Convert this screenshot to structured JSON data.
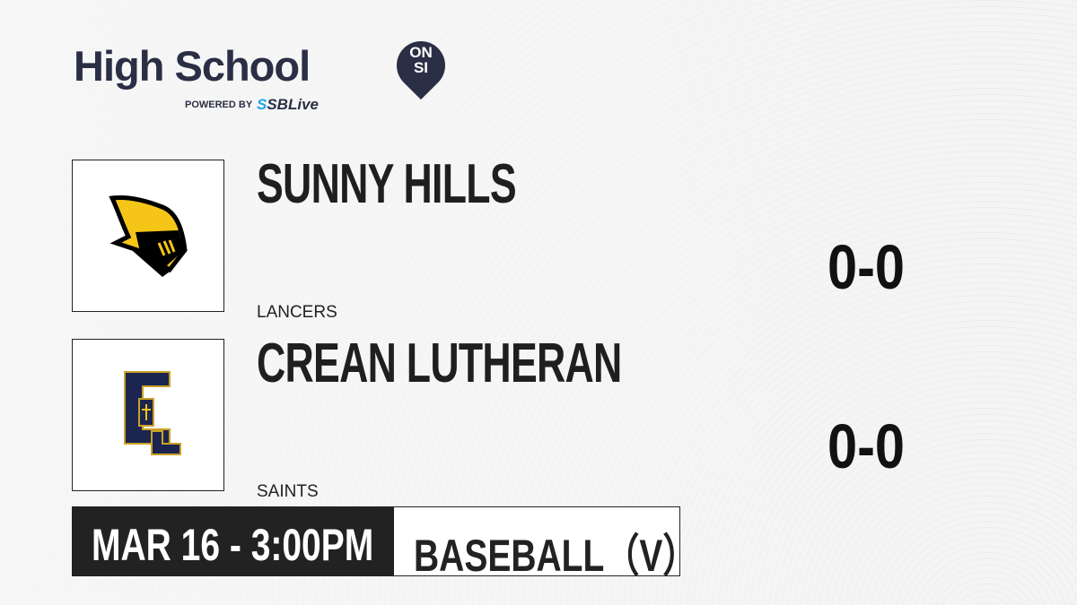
{
  "brand": {
    "title": "High School",
    "badge_top": "ON",
    "badge_bottom": "SI",
    "powered_by": "POWERED BY",
    "partner_prefix": "S",
    "partner": "SBLive"
  },
  "teams": [
    {
      "name": "SUNNY HILLS",
      "mascot": "LANCERS",
      "record": "0-0",
      "logo": "knight-helmet-logo",
      "colors": [
        "#f5c518",
        "#000000"
      ]
    },
    {
      "name": "CREAN LUTHERAN",
      "mascot": "SAINTS",
      "record": "0-0",
      "logo": "cl-monogram-logo",
      "colors": [
        "#1b2550",
        "#c9a227"
      ]
    }
  ],
  "game": {
    "datetime": "MAR 16 - 3:00PM",
    "sport": "BASEBALL（V）"
  }
}
